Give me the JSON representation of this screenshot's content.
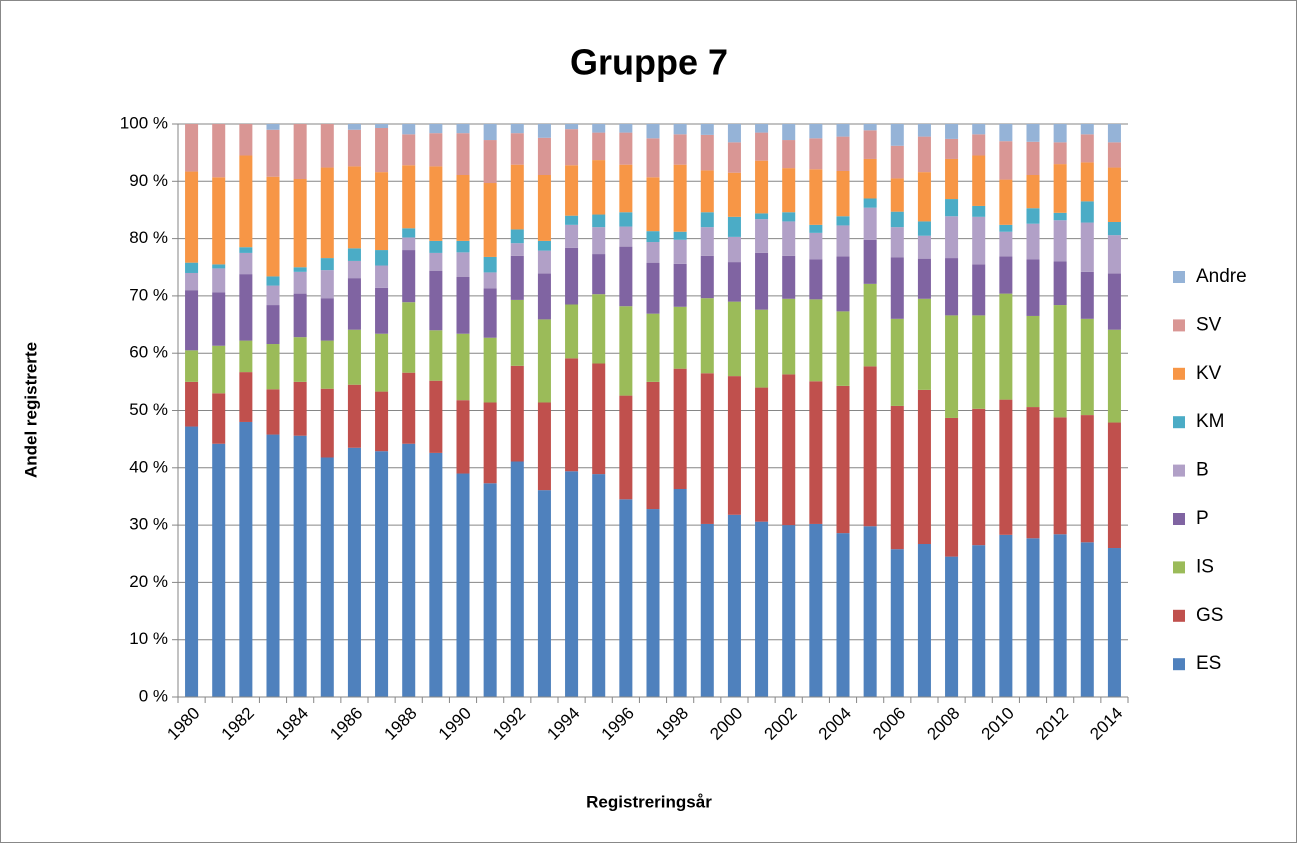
{
  "chart_data": {
    "type": "stacked_bar",
    "title": "Gruppe 7",
    "x_label": "Registreringsår",
    "y_label": "Andel registrerte",
    "legend": "right",
    "grid": true,
    "categories": [
      "1980",
      null,
      "1982",
      null,
      "1984",
      null,
      "1986",
      null,
      "1988",
      null,
      "1990",
      null,
      "1992",
      null,
      "1994",
      null,
      "1996",
      null,
      "1998",
      null,
      "2000",
      null,
      "2002",
      null,
      "2004",
      null,
      "2006",
      null,
      "2008",
      null,
      "2010",
      null,
      "2012",
      null,
      "2014"
    ],
    "ylim": [
      0,
      100
    ],
    "yticks": [
      {
        "value": 0,
        "label": "0 %"
      },
      {
        "value": 10,
        "label": "10 %"
      },
      {
        "value": 20,
        "label": "20 %"
      },
      {
        "value": 30,
        "label": "30 %"
      },
      {
        "value": 40,
        "label": "40 %"
      },
      {
        "value": 50,
        "label": "50 %"
      },
      {
        "value": 60,
        "label": "60 %"
      },
      {
        "value": 70,
        "label": "70 %"
      },
      {
        "value": 80,
        "label": "80 %"
      },
      {
        "value": 90,
        "label": "90 %"
      },
      {
        "value": 100,
        "label": "100 %"
      }
    ],
    "series": [
      {
        "name": "ES",
        "color": "#4f81bd",
        "values": [
          47.2,
          44.2,
          48,
          45.8,
          45.6,
          41.8,
          43.5,
          42.9,
          44.2,
          42.6,
          39,
          37.3,
          41.1,
          36.1,
          39.4,
          38.9,
          34.5,
          32.8,
          36.3,
          30.2,
          31.8,
          30.6,
          30,
          30.2,
          28.6,
          29.8,
          25.8,
          26.7,
          24.5,
          26.5,
          28.3,
          27.7,
          28.4,
          27,
          26
        ]
      },
      {
        "name": "GS",
        "color": "#c0504d",
        "values": [
          7.8,
          8.8,
          8.7,
          7.9,
          9.4,
          12,
          11,
          10.4,
          12.4,
          12.6,
          12.8,
          14.1,
          16.7,
          15.3,
          19.7,
          19.3,
          18.1,
          22.2,
          21,
          26.3,
          24.2,
          23.4,
          26.3,
          24.9,
          25.7,
          27.9,
          25,
          26.9,
          24.2,
          23.8,
          23.6,
          22.9,
          20.4,
          22.2,
          21.9
        ]
      },
      {
        "name": "IS",
        "color": "#9bbb59",
        "values": [
          5.5,
          8.3,
          5.5,
          7.9,
          7.8,
          8.4,
          9.6,
          10.1,
          12.3,
          8.8,
          11.6,
          11.3,
          11.5,
          14.5,
          9.4,
          12.1,
          15.6,
          11.9,
          10.8,
          13.1,
          13,
          13.6,
          13.2,
          14.3,
          13,
          14.4,
          15.2,
          15.9,
          17.9,
          16.3,
          18.5,
          15.9,
          19.6,
          16.8,
          16.2
        ]
      },
      {
        "name": "P",
        "color": "#8064a2",
        "values": [
          10.5,
          9.3,
          11.6,
          6.8,
          7.6,
          7.4,
          9,
          8,
          9.1,
          10.4,
          9.9,
          8.6,
          7.7,
          8,
          9.9,
          7,
          10.4,
          8.9,
          7.5,
          7.4,
          6.9,
          9.9,
          7.5,
          7,
          9.6,
          7.7,
          10.7,
          7,
          10,
          8.9,
          6.5,
          9.9,
          7.6,
          8.2,
          9.8
        ]
      },
      {
        "name": "B",
        "color": "#b1a0c7",
        "values": [
          3,
          4.2,
          3.7,
          3.4,
          3.8,
          4.9,
          3,
          3.9,
          2.2,
          3.1,
          4.3,
          2.8,
          2.2,
          4,
          4,
          4.7,
          3.5,
          3.6,
          4.2,
          5,
          4.4,
          5.9,
          6,
          4.6,
          5.4,
          5.6,
          5.3,
          4,
          7.3,
          8.3,
          4.3,
          6.2,
          7.2,
          8.6,
          6.7
        ]
      },
      {
        "name": "KM",
        "color": "#4bacc6",
        "values": [
          1.8,
          0.7,
          1,
          1.6,
          0.8,
          2.1,
          2.2,
          2.7,
          1.6,
          2.1,
          2,
          2.7,
          2.4,
          1.7,
          1.6,
          2.2,
          2.5,
          1.9,
          1.4,
          2.6,
          3.5,
          1,
          1.6,
          1.4,
          1.6,
          1.6,
          2.7,
          2.5,
          3,
          1.9,
          1.2,
          2.7,
          1.3,
          3.7,
          2.3
        ]
      },
      {
        "name": "KV",
        "color": "#f79646",
        "values": [
          15.9,
          15.2,
          16,
          17.4,
          15.4,
          15.8,
          14.3,
          13.6,
          11,
          13,
          11.5,
          12.9,
          11.3,
          11.5,
          8.8,
          9.5,
          8.3,
          9.4,
          11.7,
          7.3,
          7.7,
          9.2,
          7.7,
          9.7,
          7.9,
          6.9,
          5.8,
          8.6,
          7,
          8.8,
          7.9,
          5.8,
          8.5,
          6.8,
          9.5
        ]
      },
      {
        "name": "SV",
        "color": "#d99694",
        "values": [
          8.3,
          9.3,
          5.5,
          8.2,
          9.6,
          7.6,
          6.4,
          7.7,
          5.4,
          5.8,
          7.3,
          7.5,
          5.5,
          6.5,
          6.3,
          4.8,
          5.6,
          6.8,
          5.3,
          6.2,
          5.3,
          4.9,
          4.9,
          5.4,
          6,
          5,
          5.7,
          6.2,
          3.5,
          3.7,
          6.7,
          5.8,
          3.8,
          4.9,
          4.4
        ]
      },
      {
        "name": "Andre",
        "color": "#95b3d7",
        "values": [
          0,
          0,
          0,
          1,
          0,
          0,
          1,
          0.7,
          1.8,
          1.6,
          1.6,
          2.8,
          1.6,
          2.4,
          0.9,
          1.5,
          1.5,
          2.5,
          1.8,
          1.9,
          3.2,
          1.5,
          2.8,
          2.5,
          2.2,
          1.1,
          3.8,
          2.2,
          2.6,
          1.8,
          3,
          3.1,
          3.2,
          1.8,
          3.2
        ]
      }
    ]
  }
}
